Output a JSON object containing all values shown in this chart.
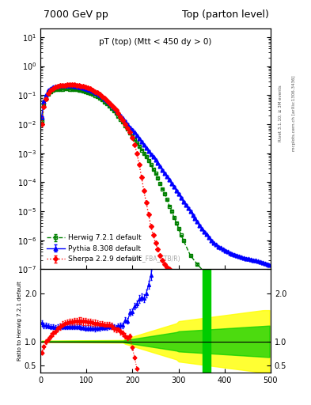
{
  "title_left": "7000 GeV pp",
  "title_right": "Top (parton level)",
  "main_title": "pT (top) (Mtt < 450 dy > 0)",
  "watermark": "(MC_FBA_TTB/R)",
  "right_label_top": "Rivet 3.1.10; ≥ 3M events",
  "right_label_bottom": "mcplots.cern.ch [arXiv:1306.3436]",
  "ylabel_ratio": "Ratio to Herwig 7.2.1 default",
  "ylim_main": [
    1e-07,
    20
  ],
  "ylim_ratio": [
    0.35,
    2.5
  ],
  "xlim": [
    0,
    500
  ],
  "ratio_yticks": [
    0.5,
    1.0,
    2.0
  ],
  "herwig_color": "#008000",
  "pythia_color": "#0000ff",
  "sherpa_color": "#ff0000",
  "legend_entries": [
    "Herwig 7.2.1 default",
    "Pythia 8.308 default",
    "Sherpa 2.2.9 default"
  ],
  "background_color": "#ffffff",
  "ratio_band_yellow": "#ffff00",
  "ratio_band_green": "#00cc00"
}
